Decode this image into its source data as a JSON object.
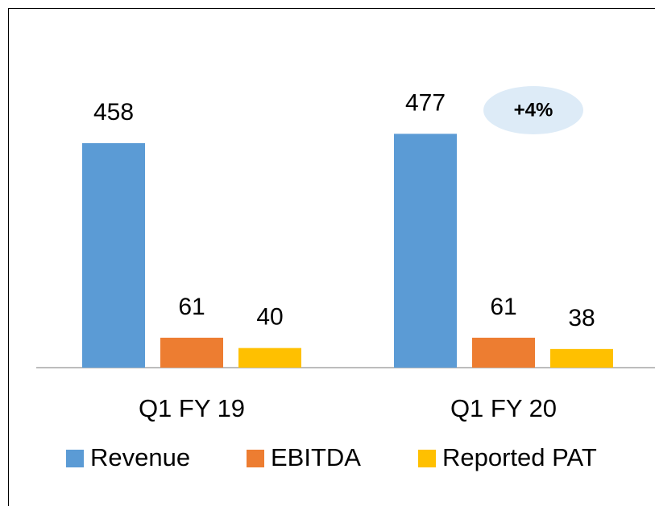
{
  "chart_data": {
    "type": "bar",
    "categories": [
      "Q1 FY 19",
      "Q1 FY 20"
    ],
    "series": [
      {
        "name": "Revenue",
        "color": "#5b9bd5",
        "values": [
          458,
          477
        ]
      },
      {
        "name": "EBITDA",
        "color": "#ed7d31",
        "values": [
          61,
          61
        ]
      },
      {
        "name": "Reported PAT",
        "color": "#ffc000",
        "values": [
          40,
          38
        ]
      }
    ],
    "ylim": [
      0,
      750
    ],
    "annotations": [
      "+4%"
    ],
    "legend": "bottom"
  }
}
